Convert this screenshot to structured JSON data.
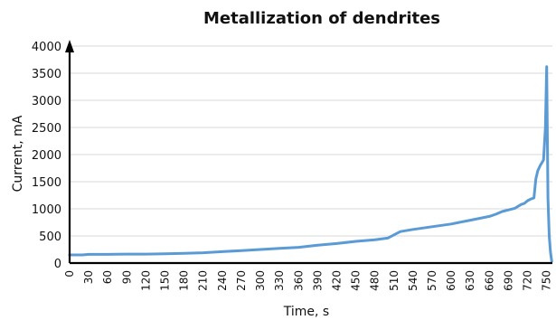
{
  "chart_data": {
    "type": "line",
    "title": "Metallization of dendrites",
    "xlabel": "Time, s",
    "ylabel": "Current, mA",
    "xlim": [
      0,
      759
    ],
    "ylim": [
      0,
      4000
    ],
    "grid": true,
    "legend": "none",
    "series_color": "#5b9bd5",
    "x_ticks": [
      0,
      30,
      60,
      90,
      120,
      150,
      180,
      210,
      240,
      270,
      300,
      330,
      360,
      390,
      420,
      450,
      480,
      510,
      540,
      570,
      600,
      630,
      660,
      690,
      720,
      750
    ],
    "y_ticks": [
      0,
      500,
      1000,
      1500,
      2000,
      2500,
      3000,
      3500,
      4000
    ],
    "series": [
      {
        "x": [
          0,
          10,
          20,
          30,
          60,
          90,
          120,
          150,
          180,
          210,
          240,
          270,
          300,
          330,
          360,
          390,
          420,
          450,
          480,
          500,
          510,
          520,
          540,
          570,
          600,
          630,
          660,
          670,
          680,
          690,
          700,
          710,
          715,
          720,
          725,
          730,
          733,
          736,
          740,
          745,
          748,
          750,
          752,
          754,
          756,
          758
        ],
        "y": [
          150,
          150,
          150,
          160,
          160,
          165,
          165,
          170,
          180,
          190,
          210,
          230,
          250,
          270,
          290,
          330,
          360,
          400,
          430,
          460,
          520,
          580,
          620,
          670,
          720,
          790,
          860,
          900,
          950,
          980,
          1010,
          1080,
          1100,
          1150,
          1180,
          1200,
          1550,
          1700,
          1800,
          1900,
          2500,
          3620,
          1200,
          500,
          200,
          30
        ]
      }
    ]
  }
}
